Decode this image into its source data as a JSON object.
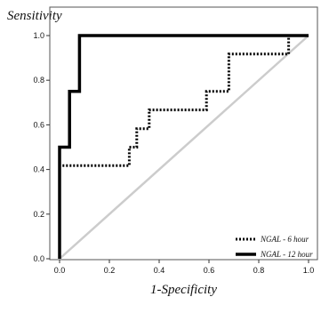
{
  "chart_data": {
    "type": "line",
    "ylabel": "Sensitivity",
    "xlabel": "1-Specificity",
    "xlim": [
      0,
      1
    ],
    "ylim": [
      0,
      1
    ],
    "x_ticks": [
      "0.0",
      "0.2",
      "0.4",
      "0.6",
      "0.8",
      "1.0"
    ],
    "y_ticks": [
      "0.0",
      "0.2",
      "0.4",
      "0.6",
      "0.8",
      "1.0"
    ],
    "grid": false,
    "legend_position": "bottom-right",
    "diagonal_reference": true,
    "colors": {
      "series_line": "#000000",
      "reference_line": "#cccccc",
      "frame": "#555555"
    },
    "series": [
      {
        "name": "NGAL - 6 hour",
        "style": "dotted",
        "x": [
          0,
          0,
          0.015,
          0.015,
          0.28,
          0.28,
          0.31,
          0.31,
          0.33,
          0.33,
          0.36,
          0.36,
          0.59,
          0.59,
          0.68,
          0.68,
          0.92,
          0.92,
          1.0
        ],
        "y": [
          0,
          0.417,
          0.417,
          0.417,
          0.417,
          0.5,
          0.5,
          0.583,
          0.583,
          0.583,
          0.583,
          0.667,
          0.667,
          0.75,
          0.75,
          0.917,
          0.917,
          1.0,
          1.0
        ]
      },
      {
        "name": "NGAL - 12 hour",
        "style": "solid",
        "x": [
          0,
          0,
          0.04,
          0.04,
          0.08,
          0.08,
          1.0
        ],
        "y": [
          0,
          0.5,
          0.5,
          0.75,
          0.75,
          1.0,
          1.0
        ]
      }
    ]
  }
}
